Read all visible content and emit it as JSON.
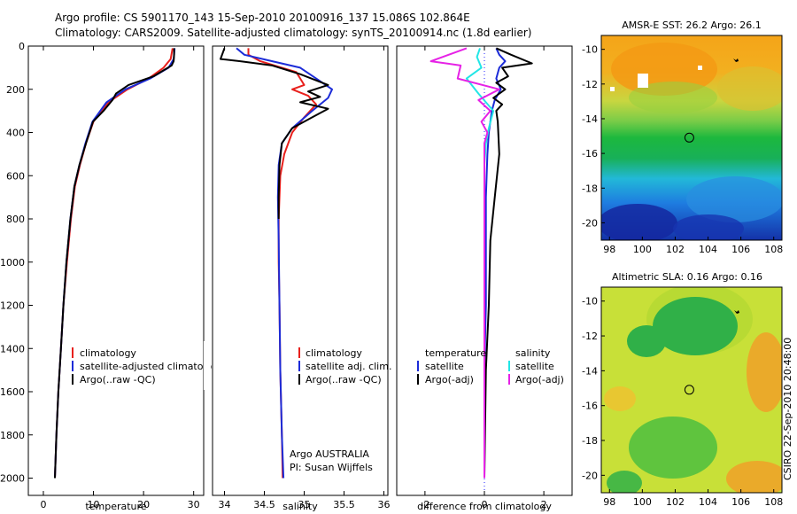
{
  "title_line1": "Argo profile: CS 5901170_143 15-Sep-2010 20100916_137 15.086S 102.864E",
  "title_line2": "Climatology: CARS2009. Satellite-adjusted climatology: synTS_20100914.nc (1.8d earlier)",
  "credit": "CSIRO 22-Sep-2010 20:48:00",
  "chart_data": [
    {
      "type": "line",
      "panel": "temperature",
      "xlabel": "temperature",
      "ylabel": "",
      "xlim": [
        -3,
        32
      ],
      "ylim": [
        2080,
        0
      ],
      "xticks": [
        0,
        10,
        20,
        30
      ],
      "yticks": [
        0,
        200,
        400,
        600,
        800,
        1000,
        1200,
        1400,
        1600,
        1800,
        2000
      ],
      "legend": [
        "climatology",
        "satellite-adjusted climatology",
        "Argo(..raw -QC)"
      ],
      "series": [
        {
          "name": "climatology",
          "color": "#e8201c",
          "x": [
            25.8,
            25.4,
            24.0,
            21.0,
            16.8,
            13.0,
            10.0,
            8.5,
            7.3,
            6.3,
            5.5,
            4.7,
            4.0,
            3.5,
            3.0,
            2.6,
            2.3
          ],
          "y": [
            10,
            60,
            100,
            150,
            200,
            260,
            350,
            450,
            550,
            650,
            800,
            1000,
            1200,
            1400,
            1600,
            1800,
            2000
          ]
        },
        {
          "name": "satellite-adjusted climatology",
          "color": "#1c2cd8",
          "x": [
            26.2,
            26.0,
            25.0,
            21.3,
            16.4,
            12.6,
            9.8,
            8.4,
            7.2,
            6.2,
            5.4,
            4.6,
            4.0,
            3.5,
            3.0,
            2.6,
            2.3
          ],
          "y": [
            10,
            60,
            100,
            150,
            200,
            260,
            350,
            450,
            550,
            650,
            800,
            1000,
            1200,
            1400,
            1600,
            1800,
            2000
          ]
        },
        {
          "name": "Argo(..raw -QC)",
          "color": "#000000",
          "x": [
            26.1,
            26.1,
            26.0,
            25.6,
            22.0,
            17.0,
            14.5,
            13.8,
            12.0,
            9.9,
            8.5,
            7.2,
            6.2,
            5.4,
            4.6,
            4.0,
            3.5,
            3.0,
            2.6,
            2.3
          ],
          "y": [
            10,
            40,
            70,
            90,
            140,
            180,
            220,
            250,
            300,
            350,
            450,
            550,
            650,
            800,
            1000,
            1200,
            1400,
            1600,
            1800,
            2000
          ]
        }
      ]
    },
    {
      "type": "line",
      "panel": "salinity",
      "xlabel": "salinity",
      "xlim": [
        33.85,
        36.05
      ],
      "ylim": [
        2080,
        0
      ],
      "xticks": [
        34,
        34.5,
        35,
        35.5,
        36
      ],
      "xticklabels": [
        "34",
        "34.5",
        "35",
        "35.5",
        "36"
      ],
      "legend": [
        "climatology",
        "satellite adj. clim.",
        "Argo(..raw -QC)"
      ],
      "annotation": [
        "Argo AUSTRALIA",
        "PI: Susan Wijffels"
      ],
      "series": [
        {
          "name": "climatology",
          "color": "#e8201c",
          "x": [
            34.3,
            34.3,
            34.45,
            34.9,
            35.0,
            34.85,
            35.05,
            35.15,
            35.0,
            34.85,
            34.75,
            34.7,
            34.68,
            34.68,
            34.69,
            34.7,
            34.72,
            34.73
          ],
          "y": [
            10,
            40,
            70,
            120,
            180,
            200,
            230,
            270,
            330,
            400,
            500,
            600,
            800,
            1000,
            1200,
            1500,
            1800,
            2000
          ]
        },
        {
          "name": "satellite adj. clim.",
          "color": "#1c2cd8",
          "x": [
            34.15,
            34.25,
            34.6,
            34.95,
            35.15,
            35.35,
            35.3,
            35.1,
            34.85,
            34.72,
            34.68,
            34.67,
            34.68,
            34.69,
            34.7,
            34.72,
            34.74
          ],
          "y": [
            10,
            40,
            70,
            100,
            150,
            200,
            240,
            300,
            380,
            450,
            550,
            700,
            900,
            1200,
            1500,
            1800,
            2000
          ]
        },
        {
          "name": "Argo(..raw -QC)",
          "color": "#000000",
          "x": [
            34.0,
            33.95,
            34.2,
            34.6,
            34.95,
            35.3,
            35.05,
            35.2,
            34.95,
            35.3,
            35.1,
            34.85,
            34.72,
            34.69,
            34.68,
            34.68
          ],
          "y": [
            10,
            60,
            70,
            90,
            130,
            180,
            210,
            235,
            260,
            290,
            330,
            380,
            450,
            550,
            700,
            800
          ]
        }
      ]
    },
    {
      "type": "line",
      "panel": "difference",
      "xlabel": "difference from climatology",
      "xlim": [
        -2.95,
        2.95
      ],
      "ylim": [
        2080,
        0
      ],
      "xticks": [
        -2,
        0,
        2
      ],
      "legend_left_title": "temperature",
      "legend_right_title": "salinity",
      "legend_left": [
        "satellite",
        "Argo(-adj)"
      ],
      "legend_right": [
        "satellite",
        "Argo(-adj)"
      ],
      "series": [
        {
          "name": "satellite",
          "group": "temperature",
          "color": "#1c2cd8",
          "x": [
            0.4,
            0.5,
            0.7,
            0.5,
            0.4,
            0.55,
            0.35,
            0.25,
            0.15,
            0.1,
            0.05,
            0.05,
            0.05,
            0.0,
            0.0,
            0.0
          ],
          "y": [
            10,
            40,
            70,
            100,
            150,
            200,
            250,
            300,
            400,
            500,
            700,
            900,
            1200,
            1500,
            1800,
            2000
          ]
        },
        {
          "name": "Argo(-adj)",
          "group": "temperature",
          "color": "#000000",
          "x": [
            0.4,
            0.9,
            1.6,
            0.6,
            0.8,
            0.4,
            0.7,
            0.3,
            0.6,
            0.4,
            0.45,
            0.5,
            0.35,
            0.2,
            0.15,
            0.05,
            0.0
          ],
          "y": [
            10,
            40,
            80,
            100,
            140,
            170,
            200,
            240,
            270,
            300,
            350,
            500,
            700,
            900,
            1200,
            1500,
            2000
          ]
        },
        {
          "name": "satellite",
          "group": "salinity",
          "color": "#22e6e6",
          "x": [
            -0.15,
            -0.25,
            -0.1,
            -0.6,
            -0.2,
            0.3,
            0.15,
            0.05,
            0.0,
            0.0,
            0.0,
            0.0
          ],
          "y": [
            10,
            50,
            100,
            150,
            220,
            300,
            380,
            450,
            550,
            700,
            1000,
            2000
          ]
        },
        {
          "name": "Argo(-adj)",
          "group": "salinity",
          "color": "#e622e6",
          "x": [
            -0.6,
            -1.8,
            -0.8,
            -0.9,
            0.5,
            -0.2,
            0.2,
            -0.1,
            0.1,
            0.0,
            0.0,
            0.0
          ],
          "y": [
            10,
            70,
            90,
            150,
            200,
            250,
            300,
            350,
            400,
            450,
            700,
            2000
          ]
        }
      ]
    },
    {
      "type": "heatmap",
      "panel": "sst-map",
      "title": "AMSR-E SST: 26.2 Argo: 26.1",
      "xlim": [
        97.5,
        108.5
      ],
      "ylim": [
        -21,
        -9.2
      ],
      "xticks": [
        98,
        100,
        102,
        104,
        106,
        108
      ],
      "yticks": [
        -10,
        -12,
        -14,
        -16,
        -18,
        -20
      ],
      "argo_position": [
        102.86,
        -15.09
      ]
    },
    {
      "type": "heatmap",
      "panel": "sla-map",
      "title": "Altimetric SLA: 0.16 Argo: 0.16",
      "xlim": [
        97.5,
        108.5
      ],
      "ylim": [
        -21,
        -9.2
      ],
      "xticks": [
        98,
        100,
        102,
        104,
        106,
        108
      ],
      "yticks": [
        -10,
        -12,
        -14,
        -16,
        -18,
        -20
      ],
      "argo_position": [
        102.86,
        -15.09
      ]
    }
  ]
}
